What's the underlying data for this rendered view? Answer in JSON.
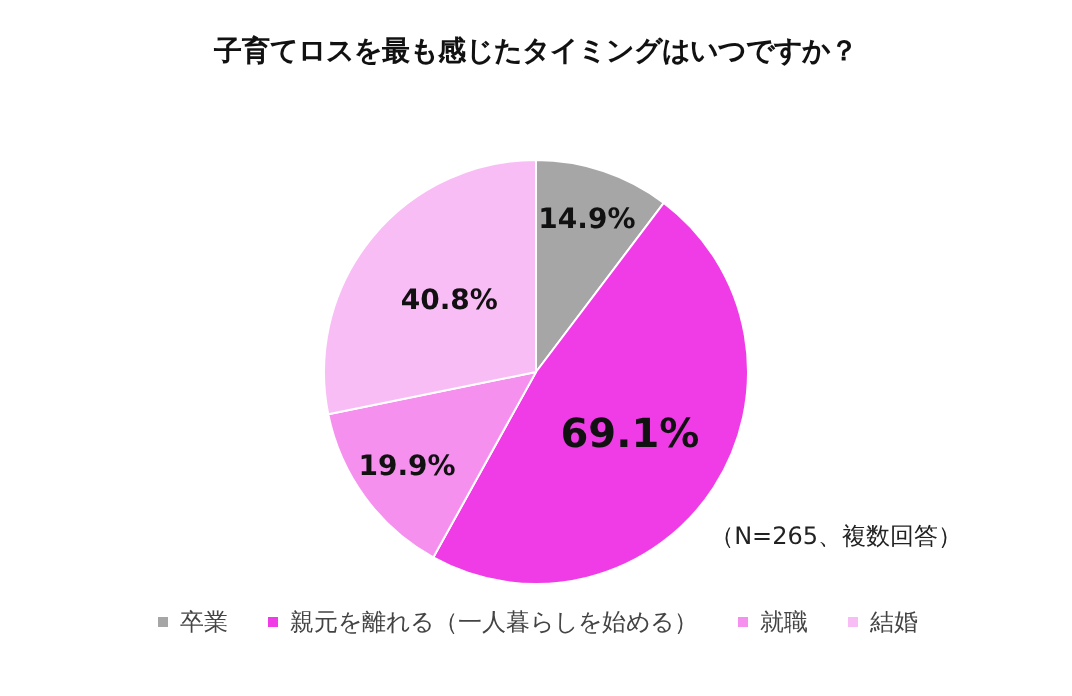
{
  "chart_data": {
    "type": "pie",
    "title": "子育てロスを最も感じたタイミングはいつですか？",
    "categories": [
      "卒業",
      "親元を離れる（一人暮らしを始める）",
      "就職",
      "結婚"
    ],
    "values": [
      14.9,
      69.1,
      19.9,
      40.8
    ],
    "colors": [
      "#a6a6a6",
      "#f03ce6",
      "#f590ef",
      "#f9bdf6"
    ],
    "value_labels": [
      "14.9%",
      "69.1%",
      "19.9%",
      "40.8%"
    ],
    "annotations": [
      "（N=265、複数回答）"
    ],
    "legend": "bottom"
  }
}
